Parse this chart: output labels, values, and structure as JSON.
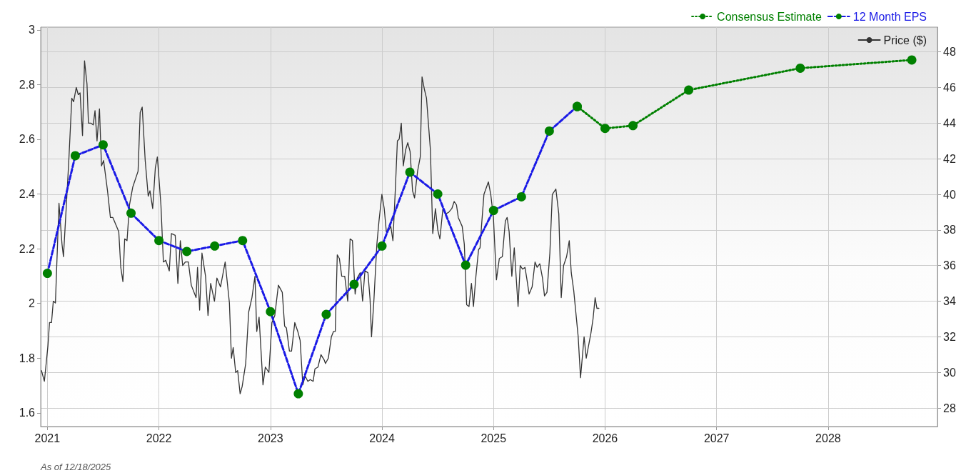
{
  "chart_data": {
    "type": "line",
    "xlim": [
      2020.94,
      2028.98
    ],
    "xticks": [
      2021,
      2022,
      2023,
      2024,
      2025,
      2026,
      2027,
      2028
    ],
    "ylim": [
      1.55,
      3.01
    ],
    "yticks": [
      1.6,
      1.8,
      2,
      2.2,
      2.4,
      2.6,
      2.8,
      3
    ],
    "y2lim": [
      26.96,
      49.39
    ],
    "y2ticks": [
      28,
      30,
      32,
      34,
      36,
      38,
      40,
      42,
      44,
      46,
      48
    ],
    "grid": true,
    "legend": "top right",
    "annotations": [
      "As of 12/18/2025"
    ],
    "series": [
      {
        "name": "Price ($)",
        "type": "line",
        "axis": "y2",
        "color": "#333333",
        "marker": "none",
        "line_style": "solid",
        "x": [
          2020.947,
          2020.973,
          2021.005,
          2021.019,
          2021.037,
          2021.053,
          2021.072,
          2021.104,
          2021.131,
          2021.144,
          2021.171,
          2021.192,
          2021.219,
          2021.235,
          2021.259,
          2021.277,
          2021.293,
          2021.315,
          2021.333,
          2021.355,
          2021.368,
          2021.389,
          2021.411,
          2021.427,
          2021.445,
          2021.467,
          2021.485,
          2021.504,
          2021.539,
          2021.565,
          2021.587,
          2021.64,
          2021.658,
          2021.677,
          2021.693,
          2021.714,
          2021.736,
          2021.765,
          2021.813,
          2021.832,
          2021.85,
          2021.877,
          2021.904,
          2021.92,
          2021.944,
          2021.968,
          2021.986,
          2022.018,
          2022.04,
          2022.061,
          2022.093,
          2022.112,
          2022.146,
          2022.17,
          2022.192,
          2022.213,
          2022.237,
          2022.264,
          2022.29,
          2022.333,
          2022.346,
          2022.365,
          2022.386,
          2022.418,
          2022.44,
          2022.464,
          2022.498,
          2022.52,
          2022.552,
          2022.594,
          2022.632,
          2022.65,
          2022.666,
          2022.688,
          2022.706,
          2022.728,
          2022.746,
          2022.778,
          2022.805,
          2022.834,
          2022.861,
          2022.877,
          2022.898,
          2022.933,
          2022.954,
          2022.986,
          2023.013,
          2023.039,
          2023.071,
          2023.106,
          2023.127,
          2023.143,
          2023.17,
          2023.189,
          2023.218,
          2023.245,
          2023.266,
          2023.29,
          2023.311,
          2023.335,
          2023.357,
          2023.383,
          2023.399,
          2023.426,
          2023.453,
          2023.482,
          2023.493,
          2023.519,
          2023.546,
          2023.565,
          2023.581,
          2023.599,
          2023.618,
          2023.639,
          2023.666,
          2023.693,
          2023.714,
          2023.735,
          2023.759,
          2023.778,
          2023.805,
          2023.826,
          2023.847,
          2023.874,
          2023.893,
          2023.906,
          2023.927,
          2023.954,
          2023.973,
          2023.999,
          2024.02,
          2024.039,
          2024.061,
          2024.079,
          2024.098,
          2024.119,
          2024.138,
          2024.154,
          2024.173,
          2024.191,
          2024.212,
          2024.231,
          2024.252,
          2024.274,
          2024.292,
          2024.319,
          2024.343,
          2024.359,
          2024.38,
          2024.399,
          2024.434,
          2024.455,
          2024.479,
          2024.5,
          2024.519,
          2024.546,
          2024.572,
          2024.599,
          2024.626,
          2024.647,
          2024.668,
          2024.684,
          2024.719,
          2024.738,
          2024.759,
          2024.78,
          2024.802,
          2024.82,
          2024.842,
          2024.866,
          2024.879,
          2024.892,
          2024.914,
          2024.954,
          2024.975,
          2024.999,
          2025.026,
          2025.052,
          2025.079,
          2025.106,
          2025.122,
          2025.14,
          2025.164,
          2025.186,
          2025.22,
          2025.239,
          2025.26,
          2025.282,
          2025.3,
          2025.319,
          2025.346,
          2025.372,
          2025.391,
          2025.415,
          2025.439,
          2025.457,
          2025.479,
          2025.505,
          2025.527,
          2025.559,
          2025.585,
          2025.607,
          2025.628,
          2025.655,
          2025.679,
          2025.697,
          2025.719,
          2025.759,
          2025.78,
          2025.812,
          2025.831,
          2025.852,
          2025.873,
          2025.892,
          2025.911,
          2025.927,
          2025.945
        ],
        "values": [
          30.1,
          29.5,
          31.5,
          32.8,
          32.8,
          34.0,
          33.9,
          39.5,
          37.2,
          36.5,
          39.5,
          41.9,
          45.4,
          45.2,
          46.0,
          45.6,
          45.7,
          43.3,
          47.5,
          46.2,
          44.0,
          44.0,
          43.9,
          44.7,
          43.0,
          44.8,
          41.6,
          41.9,
          40.2,
          38.7,
          38.7,
          37.9,
          35.9,
          35.1,
          37.5,
          37.4,
          39.4,
          40.4,
          41.3,
          44.6,
          44.9,
          41.9,
          39.9,
          40.2,
          39.2,
          41.5,
          42.1,
          39.4,
          36.2,
          36.3,
          35.7,
          37.8,
          37.7,
          35.0,
          37.4,
          36.0,
          36.2,
          36.2,
          34.9,
          34.2,
          35.9,
          33.5,
          36.7,
          35.4,
          33.2,
          35.0,
          34.0,
          35.3,
          34.8,
          36.2,
          33.9,
          30.8,
          31.4,
          30.0,
          30.1,
          28.8,
          29.2,
          30.5,
          33.4,
          34.2,
          35.4,
          32.3,
          33.1,
          29.3,
          30.3,
          30.0,
          32.8,
          33.2,
          34.9,
          34.5,
          32.6,
          32.5,
          31.2,
          31.2,
          32.8,
          32.3,
          31.8,
          29.3,
          29.8,
          29.5,
          29.6,
          29.5,
          30.2,
          30.3,
          31.0,
          30.7,
          30.5,
          30.8,
          32.0,
          32.3,
          32.3,
          36.6,
          36.4,
          35.4,
          35.4,
          34.0,
          37.5,
          37.4,
          34.4,
          35.3,
          35.6,
          34.0,
          35.7,
          35.6,
          34.1,
          32.0,
          34.0,
          37.2,
          38.5,
          40.0,
          39.2,
          37.9,
          38.0,
          38.2,
          37.4,
          40.2,
          43.0,
          43.1,
          44.0,
          41.6,
          42.5,
          42.9,
          42.4,
          40.2,
          39.8,
          41.3,
          42.1,
          46.6,
          45.9,
          45.4,
          42.5,
          37.8,
          39.2,
          38.0,
          37.5,
          39.2,
          38.9,
          39.0,
          39.2,
          39.6,
          39.4,
          38.7,
          38.2,
          37.2,
          33.8,
          33.7,
          35.0,
          33.7,
          35.4,
          36.9,
          37.0,
          38.2,
          40.0,
          40.7,
          40.0,
          38.7,
          35.2,
          36.4,
          36.5,
          38.5,
          38.7,
          37.9,
          35.4,
          37.0,
          33.7,
          36.0,
          35.8,
          35.9,
          35.2,
          34.4,
          34.8,
          36.2,
          35.9,
          36.1,
          35.3,
          34.3,
          34.5,
          36.7,
          40.0,
          40.3,
          38.9,
          34.2,
          36.0,
          36.5,
          37.4,
          35.6,
          34.6,
          32.0,
          29.7,
          32.0,
          30.8,
          31.5,
          32.2,
          33.0,
          34.2,
          33.6,
          33.6
        ]
      },
      {
        "name": "12 Month EPS",
        "type": "line",
        "axis": "y",
        "color": "#1a1ae6",
        "marker": "circle",
        "line_style": "dashed",
        "x": [
          2021.0,
          2021.25,
          2021.5,
          2021.75,
          2022.0,
          2022.25,
          2022.5,
          2022.75,
          2023.0,
          2023.25,
          2023.5,
          2023.75,
          2024.0,
          2024.25,
          2024.5,
          2024.75,
          2025.0,
          2025.25,
          2025.5,
          2025.75
        ],
        "values": [
          2.11,
          2.54,
          2.58,
          2.33,
          2.23,
          2.19,
          2.21,
          2.23,
          1.97,
          1.67,
          1.96,
          2.07,
          2.21,
          2.48,
          2.4,
          2.14,
          2.34,
          2.39,
          2.63,
          2.72
        ]
      },
      {
        "name": "Consensus Estimate",
        "type": "line",
        "axis": "y",
        "color": "#008000",
        "marker": "circle",
        "line_style": "dotted",
        "x": [
          2025.75,
          2026.0,
          2026.25,
          2026.75,
          2027.75,
          2028.75
        ],
        "values": [
          2.72,
          2.64,
          2.65,
          2.78,
          2.86,
          2.89
        ]
      }
    ]
  }
}
